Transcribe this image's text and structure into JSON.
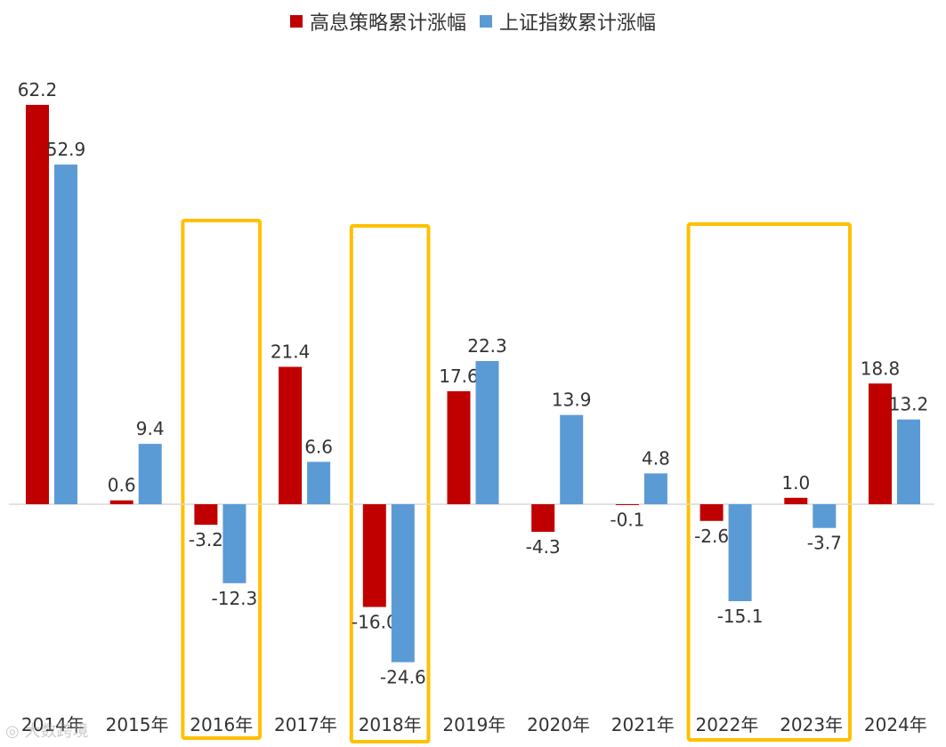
{
  "chart_data": {
    "type": "bar",
    "categories": [
      "2014年",
      "2015年",
      "2016年",
      "2017年",
      "2018年",
      "2019年",
      "2020年",
      "2021年",
      "2022年",
      "2023年",
      "2024年"
    ],
    "series": [
      {
        "name": "高息策略累计涨幅",
        "color": "#C00000",
        "values": [
          62.2,
          0.6,
          -3.2,
          21.4,
          -16.0,
          17.6,
          -4.3,
          -0.1,
          -2.6,
          1.0,
          18.8
        ]
      },
      {
        "name": "上证指数累计涨幅",
        "color": "#5B9BD5",
        "values": [
          52.9,
          9.4,
          -12.3,
          6.6,
          -24.6,
          22.3,
          13.9,
          4.8,
          -15.1,
          -3.7,
          13.2
        ]
      }
    ],
    "legend_position": "top",
    "grid": false,
    "highlight_color": "#FFC000",
    "highlighted_groups": [
      [
        "2016年"
      ],
      [
        "2018年"
      ],
      [
        "2022年",
        "2023年"
      ]
    ]
  },
  "watermark": "大数跨境",
  "icons": {
    "watermark": "watermark-logo-icon"
  }
}
